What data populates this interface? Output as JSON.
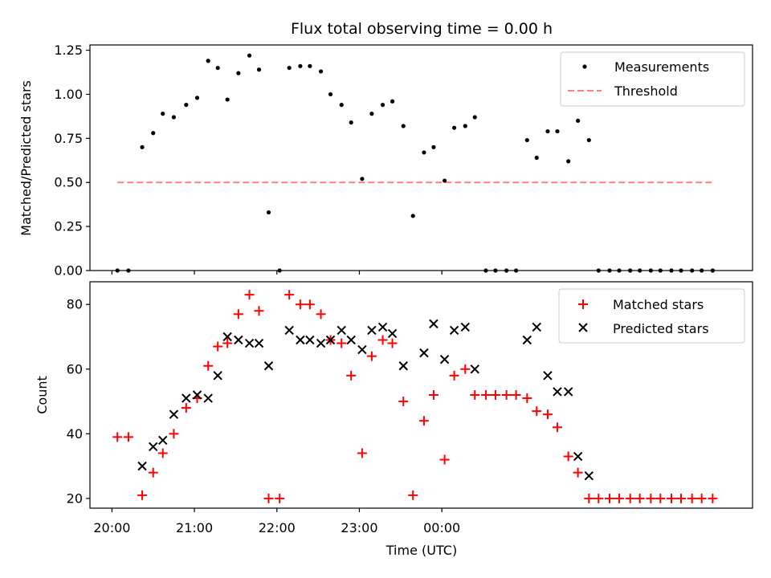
{
  "chart_data": [
    {
      "type": "scatter",
      "title": "Flux total observing time = 0.00 h",
      "xlabel": "",
      "ylabel": "Matched/Predicted stars",
      "ylim": [
        0,
        1.28
      ],
      "y_ticks": [
        0.0,
        0.25,
        0.5,
        0.75,
        1.0,
        1.25
      ],
      "y_tick_labels": [
        "0.00",
        "0.25",
        "0.50",
        "0.75",
        "1.00",
        "1.25"
      ],
      "legend_position": "top-right",
      "series": [
        {
          "name": "Measurements",
          "marker": "dot",
          "color": "#000000",
          "points": [
            [
              "20:04",
              0.0
            ],
            [
              "20:12",
              0.0
            ],
            [
              "20:22",
              0.7
            ],
            [
              "20:30",
              0.78
            ],
            [
              "20:37",
              0.89
            ],
            [
              "20:45",
              0.87
            ],
            [
              "20:54",
              0.94
            ],
            [
              "21:02",
              0.98
            ],
            [
              "21:10",
              1.19
            ],
            [
              "21:17",
              1.15
            ],
            [
              "21:24",
              0.97
            ],
            [
              "21:32",
              1.12
            ],
            [
              "21:40",
              1.22
            ],
            [
              "21:47",
              1.14
            ],
            [
              "21:54",
              0.33
            ],
            [
              "22:02",
              0.0
            ],
            [
              "22:09",
              1.15
            ],
            [
              "22:17",
              1.16
            ],
            [
              "22:24",
              1.16
            ],
            [
              "22:32",
              1.13
            ],
            [
              "22:39",
              1.0
            ],
            [
              "22:47",
              0.94
            ],
            [
              "22:54",
              0.84
            ],
            [
              "23:02",
              0.52
            ],
            [
              "23:09",
              0.89
            ],
            [
              "23:17",
              0.94
            ],
            [
              "23:24",
              0.96
            ],
            [
              "23:32",
              0.82
            ],
            [
              "23:39",
              0.31
            ],
            [
              "23:47",
              0.67
            ],
            [
              "23:54",
              0.7
            ],
            [
              "00:02",
              0.51
            ],
            [
              "00:09",
              0.81
            ],
            [
              "00:17",
              0.82
            ],
            [
              "00:24",
              0.87
            ],
            [
              "00:32",
              0.0
            ],
            [
              "00:39",
              0.0
            ],
            [
              "00:47",
              0.0
            ],
            [
              "00:54",
              0.0
            ],
            [
              "01:02",
              0.74
            ],
            [
              "01:09",
              0.64
            ],
            [
              "01:17",
              0.79
            ],
            [
              "01:24",
              0.79
            ],
            [
              "01:32",
              0.62
            ],
            [
              "01:39",
              0.85
            ],
            [
              "01:47",
              0.74
            ],
            [
              "01:54",
              0.0
            ],
            [
              "02:02",
              0.0
            ],
            [
              "02:09",
              0.0
            ],
            [
              "02:17",
              0.0
            ],
            [
              "02:24",
              0.0
            ],
            [
              "02:32",
              0.0
            ],
            [
              "02:39",
              0.0
            ],
            [
              "02:47",
              0.0
            ],
            [
              "02:54",
              0.0
            ],
            [
              "03:02",
              0.0
            ],
            [
              "03:09",
              0.0
            ],
            [
              "03:17",
              0.0
            ]
          ]
        },
        {
          "name": "Threshold",
          "marker": "dashed-line",
          "color": "#ff7f7f",
          "points": [
            [
              "20:04",
              0.5
            ],
            [
              "03:17",
              0.5
            ]
          ]
        }
      ]
    },
    {
      "type": "scatter",
      "title": "",
      "xlabel": "Time (UTC)",
      "ylabel": "Count",
      "ylim": [
        17,
        87
      ],
      "y_ticks": [
        20,
        40,
        60,
        80
      ],
      "y_tick_labels": [
        "20",
        "40",
        "60",
        "80"
      ],
      "x_tick_labels": [
        "20:00",
        "21:00",
        "22:00",
        "23:00",
        "00:00"
      ],
      "legend_position": "top-right",
      "series": [
        {
          "name": "Matched stars",
          "marker": "plus",
          "color": "#ff0000",
          "points": [
            [
              "20:04",
              39
            ],
            [
              "20:12",
              39
            ],
            [
              "20:22",
              21
            ],
            [
              "20:30",
              28
            ],
            [
              "20:37",
              34
            ],
            [
              "20:45",
              40
            ],
            [
              "20:54",
              48
            ],
            [
              "21:02",
              51
            ],
            [
              "21:10",
              61
            ],
            [
              "21:17",
              67
            ],
            [
              "21:24",
              68
            ],
            [
              "21:32",
              77
            ],
            [
              "21:40",
              83
            ],
            [
              "21:47",
              78
            ],
            [
              "21:54",
              20
            ],
            [
              "22:02",
              20
            ],
            [
              "22:09",
              83
            ],
            [
              "22:17",
              80
            ],
            [
              "22:24",
              80
            ],
            [
              "22:32",
              77
            ],
            [
              "22:39",
              69
            ],
            [
              "22:47",
              68
            ],
            [
              "22:54",
              58
            ],
            [
              "23:02",
              34
            ],
            [
              "23:09",
              64
            ],
            [
              "23:17",
              69
            ],
            [
              "23:24",
              68
            ],
            [
              "23:32",
              50
            ],
            [
              "23:39",
              21
            ],
            [
              "23:47",
              44
            ],
            [
              "23:54",
              52
            ],
            [
              "00:02",
              32
            ],
            [
              "00:09",
              58
            ],
            [
              "00:17",
              60
            ],
            [
              "00:24",
              52
            ],
            [
              "00:32",
              52
            ],
            [
              "00:39",
              52
            ],
            [
              "00:47",
              52
            ],
            [
              "00:54",
              52
            ],
            [
              "01:02",
              51
            ],
            [
              "01:09",
              47
            ],
            [
              "01:17",
              46
            ],
            [
              "01:24",
              42
            ],
            [
              "01:32",
              33
            ],
            [
              "01:39",
              28
            ],
            [
              "01:47",
              20
            ],
            [
              "01:54",
              20
            ],
            [
              "02:02",
              20
            ],
            [
              "02:09",
              20
            ],
            [
              "02:17",
              20
            ],
            [
              "02:24",
              20
            ],
            [
              "02:32",
              20
            ],
            [
              "02:39",
              20
            ],
            [
              "02:47",
              20
            ],
            [
              "02:54",
              20
            ],
            [
              "03:02",
              20
            ],
            [
              "03:09",
              20
            ],
            [
              "03:17",
              20
            ]
          ]
        },
        {
          "name": "Predicted stars",
          "marker": "x",
          "color": "#000000",
          "points": [
            [
              "20:22",
              30
            ],
            [
              "20:30",
              36
            ],
            [
              "20:37",
              38
            ],
            [
              "20:45",
              46
            ],
            [
              "20:54",
              51
            ],
            [
              "21:02",
              52
            ],
            [
              "21:10",
              51
            ],
            [
              "21:17",
              58
            ],
            [
              "21:24",
              70
            ],
            [
              "21:32",
              69
            ],
            [
              "21:40",
              68
            ],
            [
              "21:47",
              68
            ],
            [
              "21:54",
              61
            ],
            [
              "22:09",
              72
            ],
            [
              "22:17",
              69
            ],
            [
              "22:24",
              69
            ],
            [
              "22:32",
              68
            ],
            [
              "22:39",
              69
            ],
            [
              "22:47",
              72
            ],
            [
              "22:54",
              69
            ],
            [
              "23:02",
              66
            ],
            [
              "23:09",
              72
            ],
            [
              "23:17",
              73
            ],
            [
              "23:24",
              71
            ],
            [
              "23:32",
              61
            ],
            [
              "23:47",
              65
            ],
            [
              "23:54",
              74
            ],
            [
              "00:02",
              63
            ],
            [
              "00:09",
              72
            ],
            [
              "00:17",
              73
            ],
            [
              "00:24",
              60
            ],
            [
              "01:02",
              69
            ],
            [
              "01:09",
              73
            ],
            [
              "01:17",
              58
            ],
            [
              "01:24",
              53
            ],
            [
              "01:32",
              53
            ],
            [
              "01:39",
              33
            ],
            [
              "01:47",
              27
            ]
          ]
        }
      ]
    }
  ]
}
